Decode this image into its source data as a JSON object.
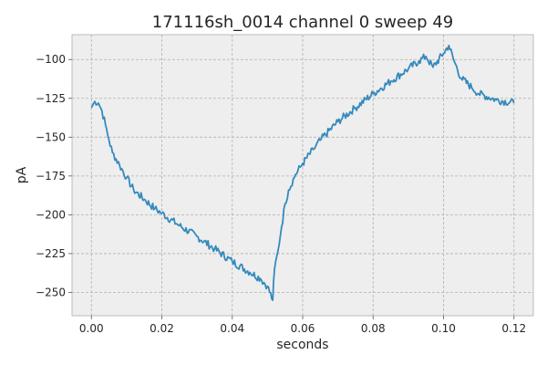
{
  "chart_data": {
    "type": "line",
    "title": "171116sh_0014 channel 0 sweep 49",
    "xlabel": "seconds",
    "ylabel": "pA",
    "xlim": [
      -0.0055,
      0.1255
    ],
    "ylim": [
      -265,
      -84
    ],
    "xticks": [
      0.0,
      0.02,
      0.04,
      0.06,
      0.08,
      0.1,
      0.12
    ],
    "xtick_labels": [
      "0.00",
      "0.02",
      "0.04",
      "0.06",
      "0.08",
      "0.10",
      "0.12"
    ],
    "yticks": [
      -100,
      -125,
      -150,
      -175,
      -200,
      -225,
      -250
    ],
    "ytick_labels": [
      "−100",
      "−125",
      "−150",
      "−175",
      "−200",
      "−225",
      "−250"
    ],
    "grid": true,
    "series": [
      {
        "color": "#348abd",
        "x": [
          0.0,
          0.001,
          0.002,
          0.003,
          0.004,
          0.005,
          0.006,
          0.008,
          0.01,
          0.012,
          0.015,
          0.018,
          0.02,
          0.025,
          0.03,
          0.035,
          0.04,
          0.045,
          0.048,
          0.05,
          0.0515,
          0.052,
          0.053,
          0.054,
          0.055,
          0.056,
          0.058,
          0.06,
          0.063,
          0.065,
          0.07,
          0.075,
          0.08,
          0.085,
          0.09,
          0.093,
          0.095,
          0.097,
          0.1,
          0.1015,
          0.103,
          0.105,
          0.108,
          0.11,
          0.115,
          0.12
        ],
        "y": [
          -131,
          -127,
          -128,
          -133,
          -142,
          -152,
          -160,
          -168,
          -176,
          -184,
          -190,
          -196,
          -199,
          -207,
          -214,
          -222,
          -230,
          -237,
          -241,
          -246,
          -255,
          -235,
          -223,
          -208,
          -193,
          -184,
          -174,
          -167,
          -158,
          -152,
          -140,
          -131,
          -122,
          -114,
          -106,
          -101,
          -98,
          -105,
          -96,
          -91,
          -101,
          -112,
          -118,
          -122,
          -126,
          -128
        ]
      }
    ]
  }
}
